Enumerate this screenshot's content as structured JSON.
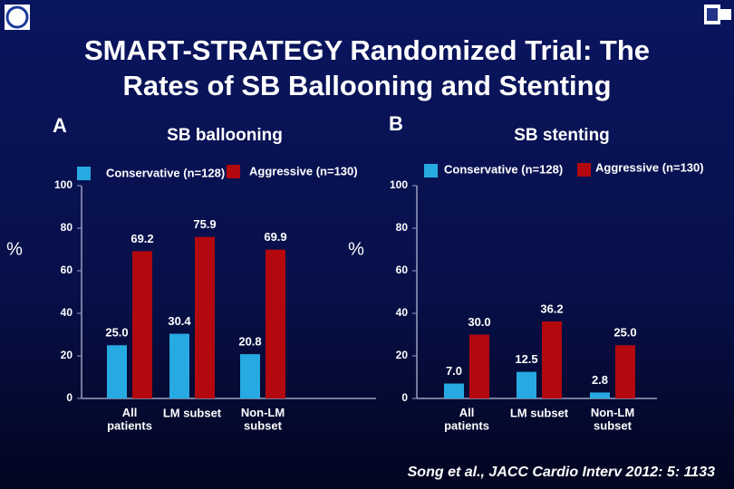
{
  "title": "SMART-STRATEGY Randomized Trial: The Rates of SB Ballooning and Stenting",
  "citation": "Song et al., JACC Cardio Interv 2012: 5: 1133",
  "chart_data": [
    {
      "type": "bar",
      "panel": "A",
      "title": "SB ballooning",
      "ylabel": "%",
      "categories": [
        "All\npatients",
        "LM subset",
        "Non-LM\nsubset"
      ],
      "series": [
        {
          "name": "Conservative (n=128)",
          "color": "#27a9e1",
          "values": [
            25.0,
            30.4,
            20.8
          ],
          "value_labels": [
            "25.0",
            "30.4",
            "20.8"
          ]
        },
        {
          "name": "Aggressive (n=130)",
          "color": "#b3080e",
          "values": [
            69.2,
            75.9,
            69.9
          ],
          "value_labels": [
            "69.2",
            "75.9",
            "69.9"
          ]
        }
      ],
      "ylim": [
        0,
        100
      ],
      "yticks": [
        0,
        20,
        40,
        60,
        80,
        100
      ]
    },
    {
      "type": "bar",
      "panel": "B",
      "title": "SB stenting",
      "ylabel": "%",
      "categories": [
        "All\npatients",
        "LM subset",
        "Non-LM\nsubset"
      ],
      "series": [
        {
          "name": "Conservative (n=128)",
          "color": "#27a9e1",
          "values": [
            7.0,
            12.5,
            2.8
          ],
          "value_labels": [
            "7.0",
            "12.5",
            "2.8"
          ]
        },
        {
          "name": "Aggressive (n=130)",
          "color": "#b3080e",
          "values": [
            30.0,
            36.2,
            25.0
          ],
          "value_labels": [
            "30.0",
            "36.2",
            "25.0"
          ]
        }
      ],
      "ylim": [
        0,
        100
      ],
      "yticks": [
        0,
        20,
        40,
        60,
        80,
        100
      ]
    }
  ]
}
